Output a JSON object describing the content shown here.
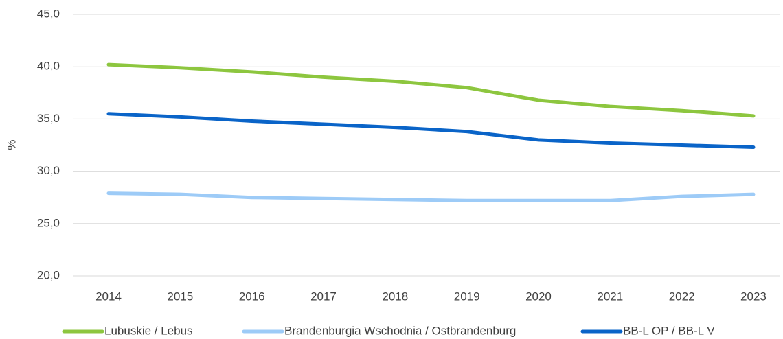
{
  "chart_data": {
    "type": "line",
    "y_label": "%",
    "categories": [
      "2014",
      "2015",
      "2016",
      "2017",
      "2018",
      "2019",
      "2020",
      "2021",
      "2022",
      "2023"
    ],
    "series": [
      {
        "name": "Lubuskie / Lebus",
        "color": "#8dc63f",
        "values": [
          40.2,
          39.9,
          39.5,
          39.0,
          38.6,
          38.0,
          36.8,
          36.2,
          35.8,
          35.3
        ]
      },
      {
        "name": "Brandenburgia Wschodnia / Ostbrandenburg",
        "color": "#9dcbf7",
        "values": [
          27.9,
          27.8,
          27.5,
          27.4,
          27.3,
          27.2,
          27.2,
          27.2,
          27.6,
          27.8
        ]
      },
      {
        "name": "BB-L OP / BB-L V",
        "color": "#0a64c8",
        "values": [
          35.5,
          35.2,
          34.8,
          34.5,
          34.2,
          33.8,
          33.0,
          32.7,
          32.5,
          32.3
        ]
      }
    ],
    "ylim": [
      20,
      45
    ],
    "yticks": [
      {
        "value": 20,
        "label": "20,0"
      },
      {
        "value": 25,
        "label": "25,0"
      },
      {
        "value": 30,
        "label": "30,0"
      },
      {
        "value": 35,
        "label": "35,0"
      },
      {
        "value": 40,
        "label": "40,0"
      },
      {
        "value": 45,
        "label": "45,0"
      }
    ],
    "grid": true,
    "legend": "bottom"
  }
}
